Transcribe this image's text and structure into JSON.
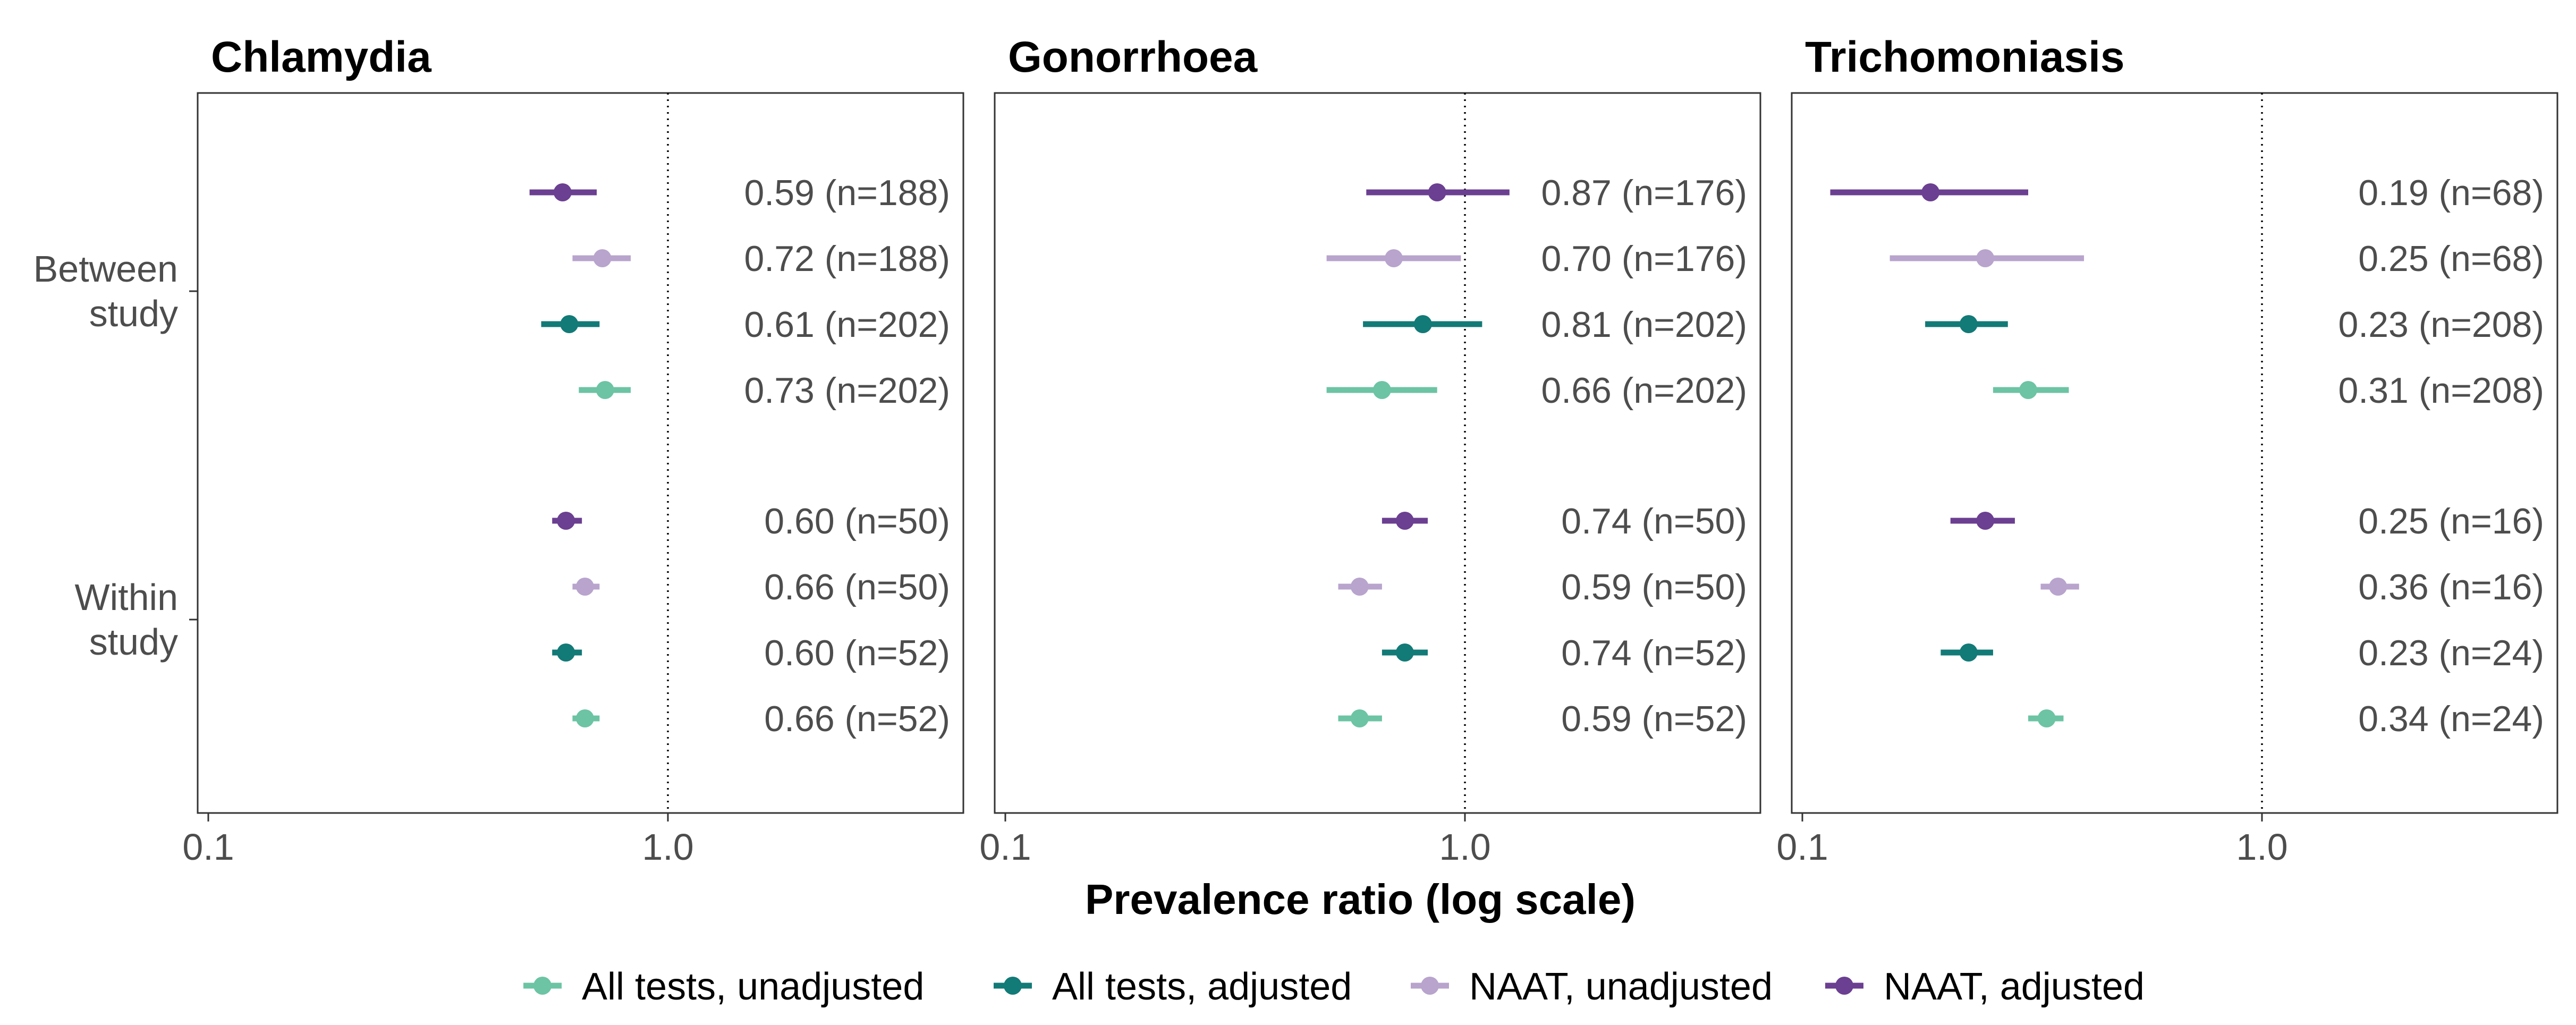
{
  "chart_data": {
    "type": "forest",
    "xlabel": "Prevalence ratio (log scale)",
    "x_scale": "log",
    "x_ticks": [
      "0.1",
      "1.0"
    ],
    "xlim": [
      0.1,
      5
    ],
    "reference_line": 1.0,
    "grid": false,
    "legend_position": "bottom",
    "y_groups": [
      "Between study",
      "Within study"
    ],
    "series": [
      {
        "name": "All tests, unadjusted",
        "color": "#6CC4A4"
      },
      {
        "name": "All tests, adjusted",
        "color": "#127A77"
      },
      {
        "name": "NAAT, unadjusted",
        "color": "#B8A4CD"
      },
      {
        "name": "NAAT, adjusted",
        "color": "#6B3F91"
      }
    ],
    "panels": [
      {
        "title": "Chlamydia",
        "rows": [
          {
            "group": "Between study",
            "series": "NAAT, adjusted",
            "estimate": 0.59,
            "lower": 0.5,
            "upper": 0.7,
            "label": "0.59 (n=188)"
          },
          {
            "group": "Between study",
            "series": "NAAT, unadjusted",
            "estimate": 0.72,
            "lower": 0.62,
            "upper": 0.83,
            "label": "0.72 (n=188)"
          },
          {
            "group": "Between study",
            "series": "All tests, adjusted",
            "estimate": 0.61,
            "lower": 0.53,
            "upper": 0.71,
            "label": "0.61 (n=202)"
          },
          {
            "group": "Between study",
            "series": "All tests, unadjusted",
            "estimate": 0.73,
            "lower": 0.64,
            "upper": 0.83,
            "label": "0.73 (n=202)"
          },
          {
            "group": "Within study",
            "series": "NAAT, adjusted",
            "estimate": 0.6,
            "lower": 0.56,
            "upper": 0.65,
            "label": "0.60 (n=50)"
          },
          {
            "group": "Within study",
            "series": "NAAT, unadjusted",
            "estimate": 0.66,
            "lower": 0.62,
            "upper": 0.71,
            "label": "0.66 (n=50)"
          },
          {
            "group": "Within study",
            "series": "All tests, adjusted",
            "estimate": 0.6,
            "lower": 0.56,
            "upper": 0.65,
            "label": "0.60 (n=52)"
          },
          {
            "group": "Within study",
            "series": "All tests, unadjusted",
            "estimate": 0.66,
            "lower": 0.62,
            "upper": 0.71,
            "label": "0.66 (n=52)"
          }
        ]
      },
      {
        "title": "Gonorrhoea",
        "rows": [
          {
            "group": "Between study",
            "series": "NAAT, adjusted",
            "estimate": 0.87,
            "lower": 0.61,
            "upper": 1.25,
            "label": "0.87 (n=176)"
          },
          {
            "group": "Between study",
            "series": "NAAT, unadjusted",
            "estimate": 0.7,
            "lower": 0.5,
            "upper": 0.98,
            "label": "0.70 (n=176)"
          },
          {
            "group": "Between study",
            "series": "All tests, adjusted",
            "estimate": 0.81,
            "lower": 0.6,
            "upper": 1.09,
            "label": "0.81 (n=202)"
          },
          {
            "group": "Between study",
            "series": "All tests, unadjusted",
            "estimate": 0.66,
            "lower": 0.5,
            "upper": 0.87,
            "label": "0.66 (n=202)"
          },
          {
            "group": "Within study",
            "series": "NAAT, adjusted",
            "estimate": 0.74,
            "lower": 0.66,
            "upper": 0.83,
            "label": "0.74 (n=50)"
          },
          {
            "group": "Within study",
            "series": "NAAT, unadjusted",
            "estimate": 0.59,
            "lower": 0.53,
            "upper": 0.66,
            "label": "0.59 (n=50)"
          },
          {
            "group": "Within study",
            "series": "All tests, adjusted",
            "estimate": 0.74,
            "lower": 0.66,
            "upper": 0.83,
            "label": "0.74 (n=52)"
          },
          {
            "group": "Within study",
            "series": "All tests, unadjusted",
            "estimate": 0.59,
            "lower": 0.53,
            "upper": 0.66,
            "label": "0.59 (n=52)"
          }
        ]
      },
      {
        "title": "Trichomoniasis",
        "rows": [
          {
            "group": "Between study",
            "series": "NAAT, adjusted",
            "estimate": 0.19,
            "lower": 0.115,
            "upper": 0.31,
            "label": "0.19 (n=68)"
          },
          {
            "group": "Between study",
            "series": "NAAT, unadjusted",
            "estimate": 0.25,
            "lower": 0.155,
            "upper": 0.41,
            "label": "0.25 (n=68)"
          },
          {
            "group": "Between study",
            "series": "All tests, adjusted",
            "estimate": 0.23,
            "lower": 0.185,
            "upper": 0.28,
            "label": "0.23 (n=208)"
          },
          {
            "group": "Between study",
            "series": "All tests, unadjusted",
            "estimate": 0.31,
            "lower": 0.26,
            "upper": 0.38,
            "label": "0.31 (n=208)"
          },
          {
            "group": "Within study",
            "series": "NAAT, adjusted",
            "estimate": 0.25,
            "lower": 0.21,
            "upper": 0.29,
            "label": "0.25 (n=16)"
          },
          {
            "group": "Within study",
            "series": "NAAT, unadjusted",
            "estimate": 0.36,
            "lower": 0.33,
            "upper": 0.4,
            "label": "0.36 (n=16)"
          },
          {
            "group": "Within study",
            "series": "All tests, adjusted",
            "estimate": 0.23,
            "lower": 0.2,
            "upper": 0.26,
            "label": "0.23 (n=24)"
          },
          {
            "group": "Within study",
            "series": "All tests, unadjusted",
            "estimate": 0.34,
            "lower": 0.31,
            "upper": 0.37,
            "label": "0.34 (n=24)"
          }
        ]
      }
    ]
  }
}
